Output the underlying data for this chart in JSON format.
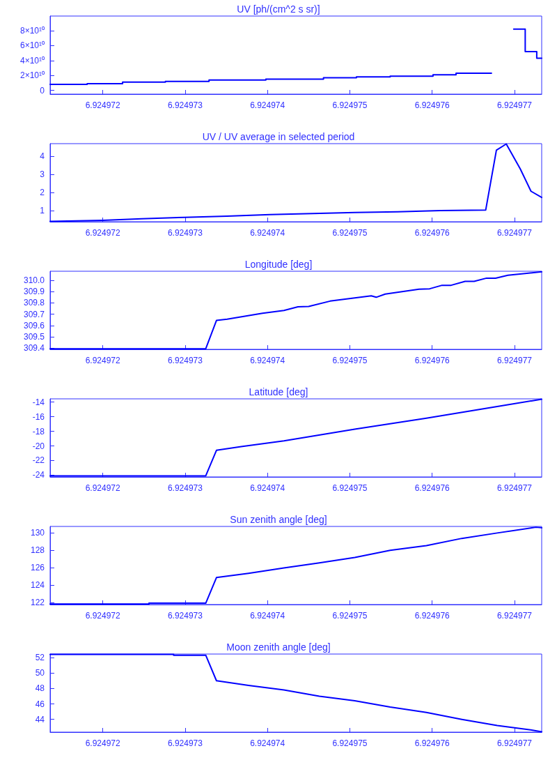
{
  "chart_data": [
    {
      "type": "step",
      "title": "UV [ph/(cm^2 s sr)]",
      "color": "#0000ff",
      "marker": "none",
      "line_style": "solid",
      "grid": false,
      "x": [
        6.92497136,
        6.92497181,
        6.92497224,
        6.92497276,
        6.92497329,
        6.92497398,
        6.92497468,
        6.92497508,
        6.92497549,
        6.92497601,
        6.92497629,
        6.92497672,
        6.92497699,
        6.92497713,
        6.92497727,
        6.92497733
      ],
      "values": [
        8000000000.0,
        9000000000.0,
        11000000000.0,
        12000000000.0,
        14000000000.0,
        15000000000.0,
        17000000000.0,
        18000000000.0,
        19000000000.0,
        21000000000.0,
        23000000000.0,
        null,
        82000000000.0,
        52000000000.0,
        43000000000.0,
        43000000000.0
      ],
      "xlim": [
        6.92497136,
        6.92497733
      ],
      "xticks": [
        6.924972,
        6.924973,
        6.924974,
        6.924975,
        6.924976,
        6.924977
      ],
      "ylim": [
        -5000000000.0,
        99500000000.0
      ],
      "yticks": [
        0,
        {
          "value": 20000000000.0,
          "label": "2×10¹⁰"
        },
        {
          "value": 40000000000.0,
          "label": "4×10¹⁰"
        },
        {
          "value": 60000000000.0,
          "label": "6×10¹⁰"
        },
        {
          "value": 80000000000.0,
          "label": "8×10¹⁰"
        }
      ]
    },
    {
      "type": "line",
      "title": "UV / UV average in selected period",
      "color": "#0000ff",
      "marker": "none",
      "line_style": "solid",
      "grid": false,
      "x": [
        6.92497136,
        6.924972,
        6.92497247,
        6.92497299,
        6.92497351,
        6.92497403,
        6.92497455,
        6.92497506,
        6.92497558,
        6.9249761,
        6.92497665,
        6.92497678,
        6.9249769,
        6.92497707,
        6.9249772,
        6.92497733
      ],
      "values": [
        0.41,
        0.47,
        0.55,
        0.63,
        0.7,
        0.78,
        0.84,
        0.9,
        0.94,
        1.0,
        1.03,
        4.33,
        4.67,
        3.3,
        2.07,
        1.73
      ],
      "xlim": [
        6.92497136,
        6.92497733
      ],
      "xticks": [
        6.924972,
        6.924973,
        6.924974,
        6.924975,
        6.924976,
        6.924977
      ],
      "ylim": [
        0.39,
        4.69
      ],
      "yticks": [
        1,
        2,
        3,
        4
      ]
    },
    {
      "type": "line",
      "title": "Longitude [deg]",
      "color": "#0000ff",
      "marker": "none",
      "line_style": "solid",
      "grid": false,
      "x": [
        6.92497136,
        6.92497325,
        6.92497338,
        6.92497351,
        6.92497394,
        6.9249742,
        6.92497437,
        6.9249745,
        6.92497476,
        6.92497506,
        6.92497526,
        6.92497532,
        6.92497543,
        6.92497584,
        6.92497597,
        6.92497612,
        6.92497623,
        6.9249764,
        6.92497651,
        6.92497666,
        6.92497677,
        6.92497692,
        6.92497733
      ],
      "values": [
        309.395,
        309.395,
        309.645,
        309.656,
        309.709,
        309.734,
        309.766,
        309.769,
        309.816,
        309.844,
        309.863,
        309.85,
        309.878,
        309.922,
        309.925,
        309.956,
        309.956,
        309.991,
        309.991,
        310.019,
        310.019,
        310.044,
        310.075
      ],
      "xlim": [
        6.92497136,
        6.92497733
      ],
      "xticks": [
        6.924972,
        6.924973,
        6.924974,
        6.924975,
        6.924976,
        6.924977
      ],
      "ylim": [
        309.39,
        310.08
      ],
      "yticks": [
        309.4,
        309.5,
        309.6,
        309.7,
        309.8,
        309.9,
        {
          "value": 310,
          "label": "310.0"
        }
      ]
    },
    {
      "type": "line",
      "title": "Latitude [deg]",
      "color": "#0000ff",
      "marker": "none",
      "line_style": "solid",
      "grid": false,
      "x": [
        6.92497136,
        6.92497325,
        6.92497338,
        6.92497368,
        6.9249742,
        6.92497506,
        6.92497593,
        6.92497679,
        6.92497733
      ],
      "values": [
        -24.1,
        -24.1,
        -20.6,
        -20.1,
        -19.3,
        -17.7,
        -16.2,
        -14.6,
        -13.6
      ],
      "xlim": [
        6.92497136,
        6.92497733
      ],
      "xticks": [
        6.924972,
        6.924973,
        6.924974,
        6.924975,
        6.924976,
        6.924977
      ],
      "ylim": [
        -24.25,
        -13.55
      ],
      "yticks": [
        -24,
        -22,
        -20,
        -18,
        -16,
        -14
      ]
    },
    {
      "type": "line",
      "title": "Sun zenith angle [deg]",
      "color": "#0000ff",
      "marker": "none",
      "line_style": "solid",
      "grid": false,
      "x": [
        6.92497136,
        6.92497256,
        6.92497256,
        6.92497325,
        6.92497338,
        6.92497377,
        6.9249742,
        6.92497463,
        6.92497506,
        6.92497549,
        6.92497593,
        6.92497636,
        6.92497679,
        6.92497726,
        6.92497733
      ],
      "values": [
        121.85,
        121.85,
        121.95,
        121.95,
        124.89,
        125.38,
        126.0,
        126.58,
        127.2,
        128.02,
        128.56,
        129.38,
        130.0,
        130.66,
        130.6
      ],
      "xlim": [
        6.92497136,
        6.92497733
      ],
      "xticks": [
        6.924972,
        6.924973,
        6.924974,
        6.924975,
        6.924976,
        6.924977
      ],
      "ylim": [
        121.8,
        130.75
      ],
      "yticks": [
        122,
        124,
        126,
        128,
        130
      ]
    },
    {
      "type": "line",
      "title": "Moon zenith angle [deg]",
      "color": "#0000ff",
      "marker": "none",
      "line_style": "solid",
      "grid": false,
      "x": [
        6.92497136,
        6.92497286,
        6.92497286,
        6.92497325,
        6.92497338,
        6.92497377,
        6.9249742,
        6.92497463,
        6.92497506,
        6.92497549,
        6.92497593,
        6.92497636,
        6.92497679,
        6.92497722,
        6.92497733
      ],
      "values": [
        52.4,
        52.4,
        52.3,
        52.3,
        49.0,
        48.4,
        47.8,
        47.0,
        46.4,
        45.6,
        44.9,
        44.0,
        43.2,
        42.6,
        42.4
      ],
      "xlim": [
        6.92497136,
        6.92497733
      ],
      "xticks": [
        6.924972,
        6.924973,
        6.924974,
        6.924975,
        6.924976,
        6.924977
      ],
      "ylim": [
        42.35,
        52.45
      ],
      "yticks": [
        44,
        46,
        48,
        50,
        52
      ]
    }
  ]
}
